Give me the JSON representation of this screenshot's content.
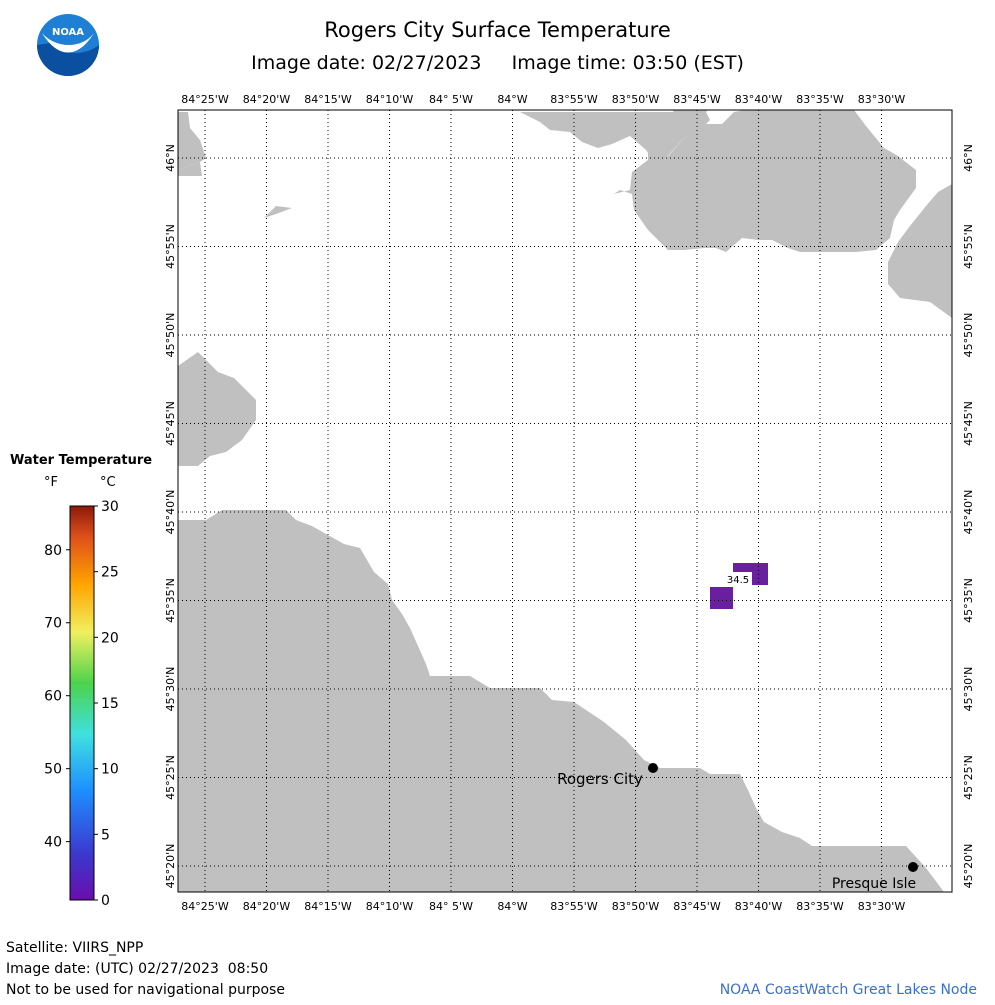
{
  "header": {
    "title": "Rogers City Surface Temperature",
    "image_date_label": "Image date: 02/27/2023",
    "image_time_label": "Image time: 03:50 (EST)"
  },
  "logo": {
    "text": "NOAA",
    "icon": "noaa-logo-icon"
  },
  "map": {
    "longitude_labels": [
      "84°25'W",
      "84°20'W",
      "84°15'W",
      "84°10'W",
      "84° 5'W",
      "84°W",
      "83°55'W",
      "83°50'W",
      "83°45'W",
      "83°40'W",
      "83°35'W",
      "83°30'W"
    ],
    "latitude_labels": [
      "46°N",
      "45°55'N",
      "45°50'N",
      "45°45'N",
      "45°40'N",
      "45°35'N",
      "45°30'N",
      "45°25'N",
      "45°20'N"
    ],
    "colors": {
      "land": "#c0c0c0",
      "water": "#ffffff",
      "grid": "#000000",
      "temp_cell": "#6a1fa0"
    },
    "places": [
      {
        "name": "Rogers City"
      },
      {
        "name": "Presque Isle"
      }
    ],
    "temperature_label": "34.5"
  },
  "legend": {
    "title": "Water Temperature",
    "unit_f": "°F",
    "unit_c": "°C",
    "fahrenheit_ticks": [
      "80",
      "70",
      "60",
      "50",
      "40"
    ],
    "celsius_ticks": [
      "30",
      "25",
      "20",
      "15",
      "10",
      "5",
      "0"
    ]
  },
  "footer": {
    "satellite": "Satellite: VIIRS_NPP",
    "utc_date": "Image date: (UTC) 02/27/2023  08:50",
    "disclaimer": "Not to be used for navigational purpose",
    "credit": "NOAA CoastWatch Great Lakes Node"
  }
}
